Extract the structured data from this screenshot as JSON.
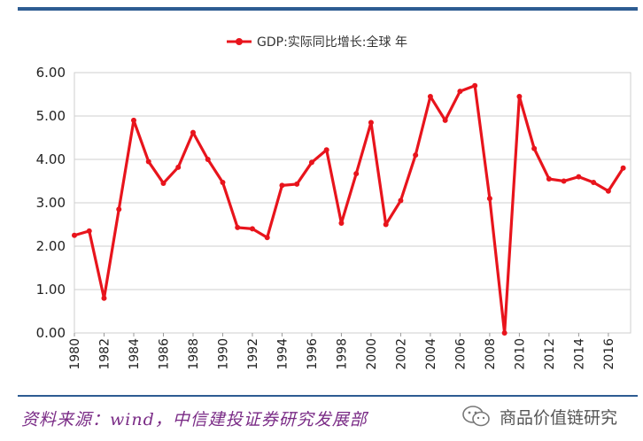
{
  "chart_data": {
    "type": "line",
    "legend": "GDP:实际同比增长:全球 年",
    "legend_position": "top",
    "series": [
      {
        "name": "GDP:实际同比增长:全球 年",
        "color": "#e8141c",
        "x": [
          1980,
          1981,
          1982,
          1983,
          1984,
          1985,
          1986,
          1987,
          1988,
          1989,
          1990,
          1991,
          1992,
          1993,
          1994,
          1995,
          1996,
          1997,
          1998,
          1999,
          2000,
          2001,
          2002,
          2003,
          2004,
          2005,
          2006,
          2007,
          2008,
          2009,
          2010,
          2011,
          2012,
          2013,
          2014,
          2015,
          2016,
          2017
        ],
        "values": [
          2.25,
          2.35,
          0.8,
          2.85,
          4.9,
          3.95,
          3.45,
          3.82,
          4.62,
          4.0,
          3.47,
          2.43,
          2.4,
          2.2,
          3.4,
          3.43,
          3.93,
          4.22,
          2.53,
          3.67,
          4.85,
          2.5,
          3.05,
          4.1,
          5.45,
          4.9,
          5.57,
          5.7,
          3.1,
          0.0,
          5.45,
          4.25,
          3.55,
          3.5,
          3.6,
          3.47,
          3.27,
          3.8
        ]
      }
    ],
    "y_ticks": [
      "0.00",
      "1.00",
      "2.00",
      "3.00",
      "4.00",
      "5.00",
      "6.00"
    ],
    "x_ticks": [
      "1980",
      "1982",
      "1984",
      "1986",
      "1988",
      "1990",
      "1992",
      "1994",
      "1996",
      "1998",
      "2000",
      "2002",
      "2004",
      "2006",
      "2008",
      "2010",
      "2012",
      "2014",
      "2016"
    ],
    "ylim": [
      0,
      6
    ],
    "xlim": [
      1980,
      2017.5
    ],
    "grid": true
  },
  "footer": {
    "source": "资料来源：wind，中信建投证券研究发展部",
    "watermark": "商品价值链研究",
    "watermark_icon": "wechat-icon"
  },
  "colors": {
    "line": "#e8141c",
    "rule": "#2d5c92",
    "source_text": "#7a2b86"
  }
}
